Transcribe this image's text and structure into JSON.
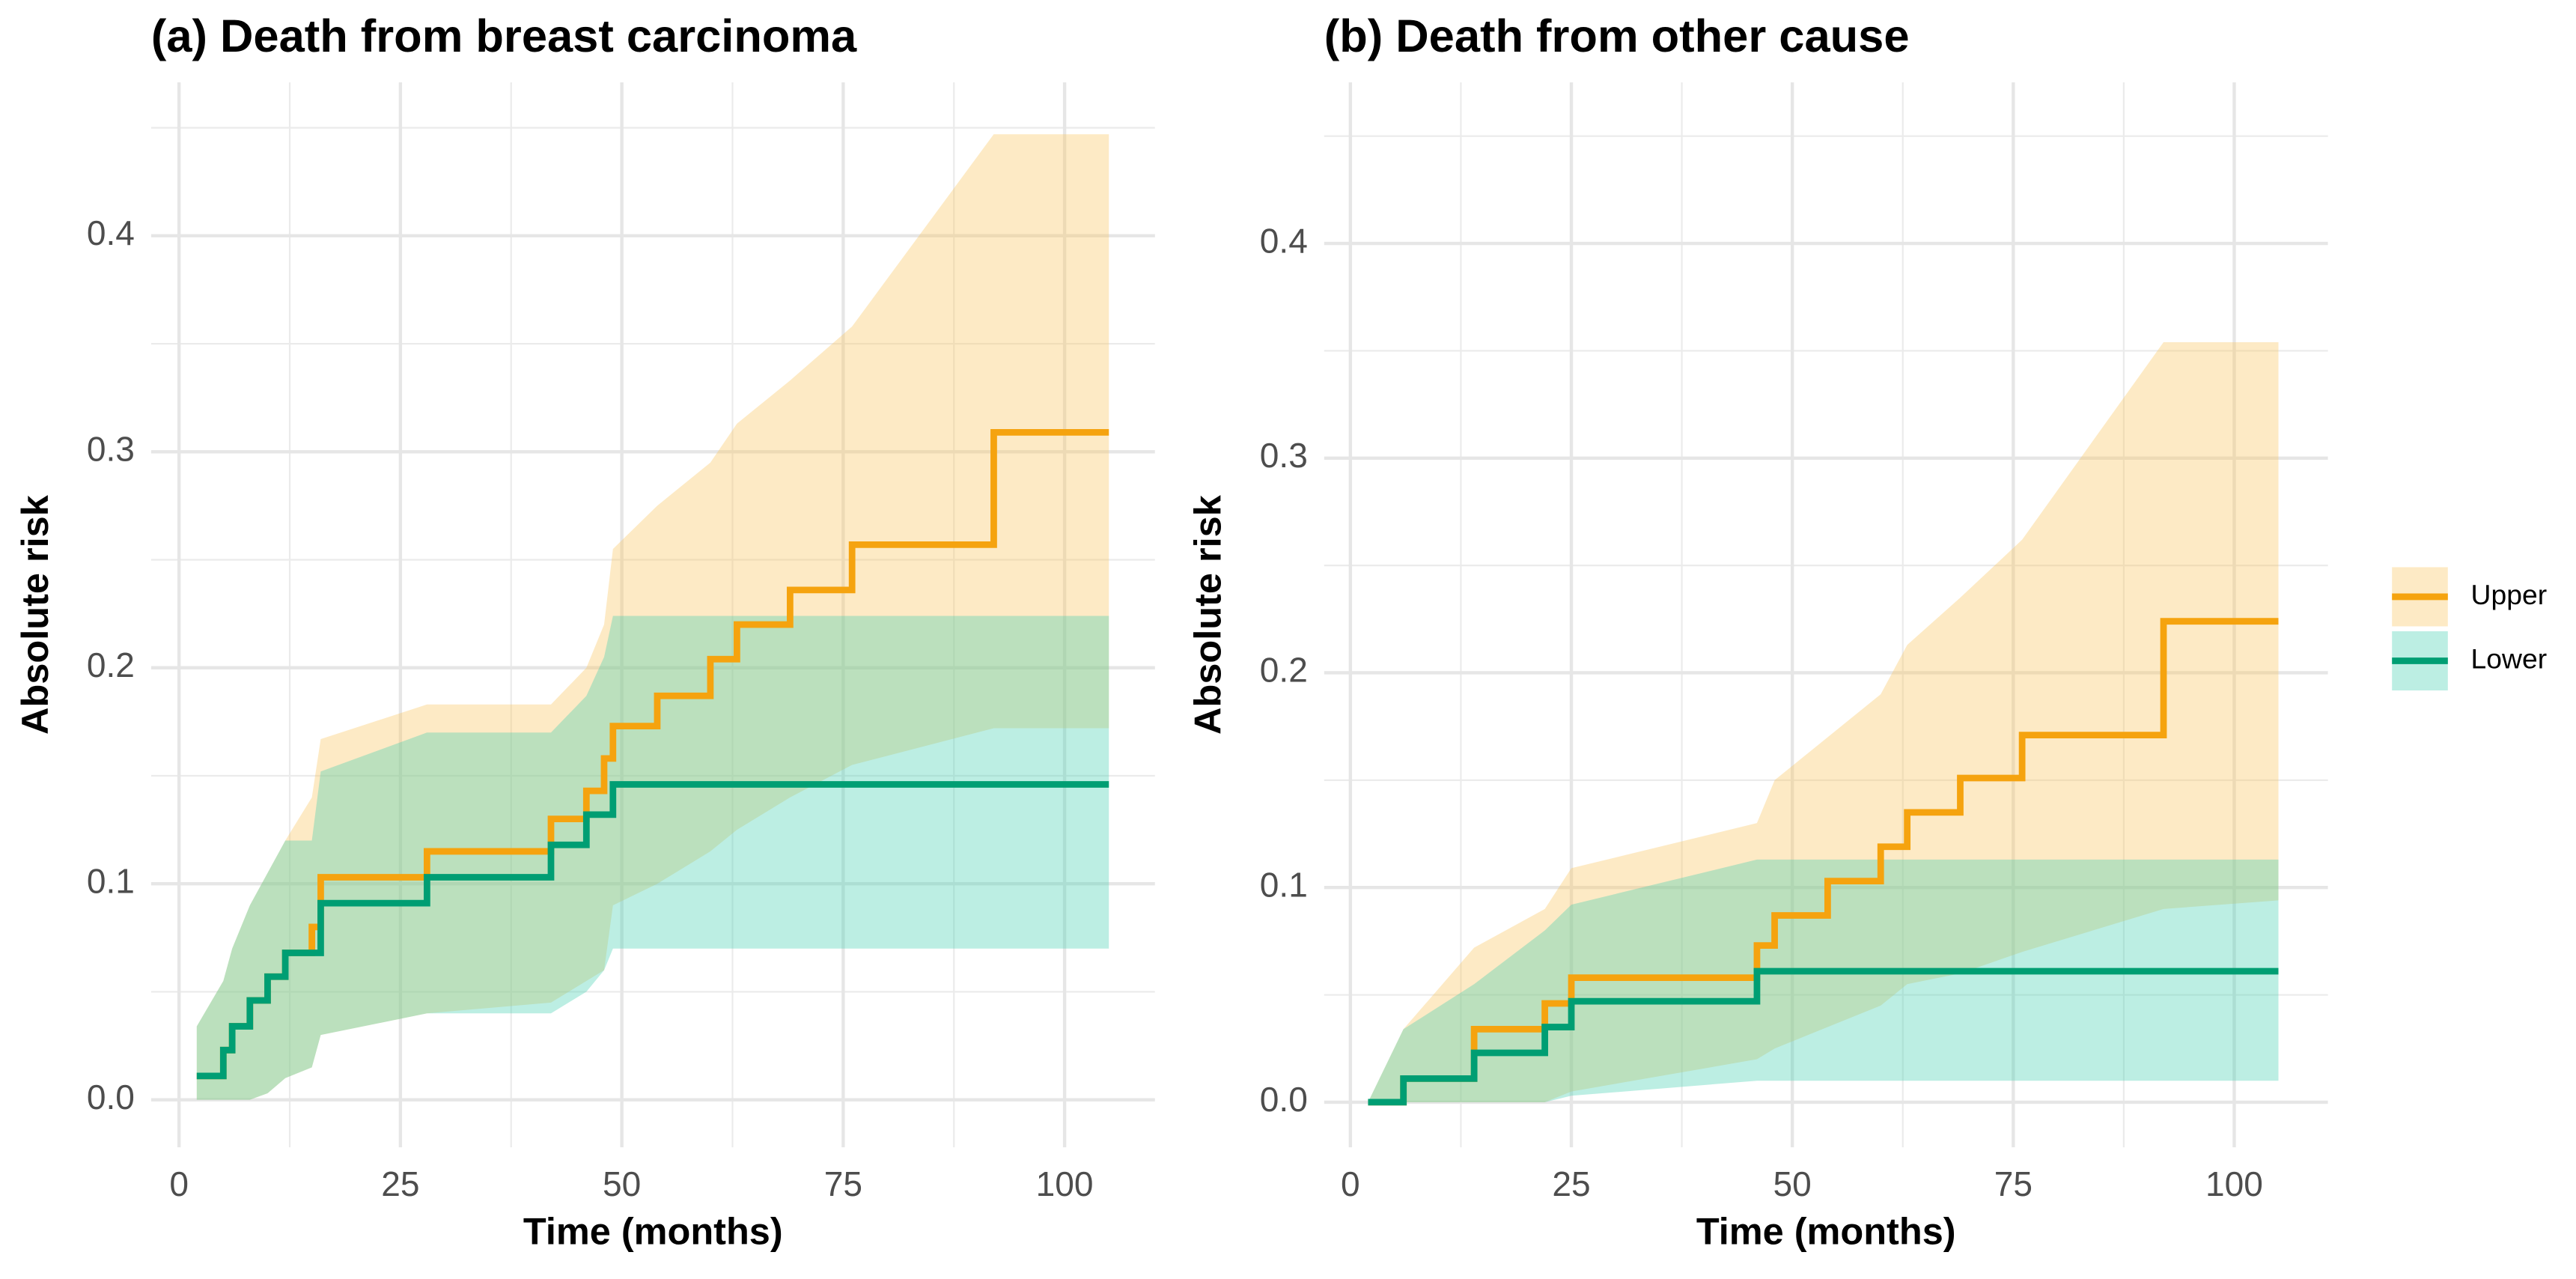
{
  "chart_data": [
    {
      "type": "line",
      "step": true,
      "title": "(a) Death from breast carcinoma",
      "x_label": "Time (months)",
      "y_label": "Absolute risk",
      "xlim": [
        -3.15,
        110.2
      ],
      "ylim": [
        -0.022,
        0.471
      ],
      "xticks": [
        0,
        25,
        50,
        75,
        100
      ],
      "yticks": [
        {
          "value": 0,
          "label": "0.0"
        },
        0.1,
        0.2,
        0.3,
        0.4
      ],
      "grid": true,
      "x": [
        2,
        5,
        6,
        8,
        10,
        12,
        15,
        16,
        28,
        42,
        46,
        48,
        49,
        54,
        60,
        63,
        69,
        76,
        92,
        105
      ],
      "series": [
        {
          "name": "Upper",
          "color": "#f5a30f",
          "band_color": "#f9c25a",
          "values": [
            0.011,
            0.023,
            0.034,
            0.046,
            0.057,
            0.068,
            0.08,
            0.103,
            0.115,
            0.13,
            0.143,
            0.158,
            0.173,
            0.187,
            0.204,
            0.22,
            0.236,
            0.257,
            0.309,
            0.309
          ],
          "lower": [
            0,
            0,
            0,
            0,
            0.003,
            0.01,
            0.015,
            0.03,
            0.04,
            0.045,
            0.055,
            0.06,
            0.09,
            0.1,
            0.115,
            0.125,
            0.14,
            0.155,
            0.172,
            0.172
          ],
          "upper": [
            0.034,
            0.055,
            0.07,
            0.09,
            0.105,
            0.12,
            0.14,
            0.167,
            0.183,
            0.183,
            0.2,
            0.22,
            0.255,
            0.275,
            0.295,
            0.313,
            0.333,
            0.358,
            0.447,
            0.447
          ]
        },
        {
          "name": "Lower",
          "color": "#009e73",
          "band_color": "#3fcfae",
          "values": [
            0.011,
            0.023,
            0.034,
            0.046,
            0.057,
            0.068,
            0.068,
            0.091,
            0.103,
            0.118,
            0.132,
            0.132,
            0.146,
            0.146,
            0.146,
            0.146,
            0.146,
            0.146,
            0.146,
            0.146
          ],
          "lower": [
            0,
            0,
            0,
            0,
            0.003,
            0.01,
            0.015,
            0.03,
            0.04,
            0.04,
            0.05,
            0.06,
            0.07,
            0.07,
            0.07,
            0.07,
            0.07,
            0.07,
            0.07,
            0.07
          ],
          "upper": [
            0.034,
            0.055,
            0.07,
            0.09,
            0.105,
            0.12,
            0.12,
            0.152,
            0.17,
            0.17,
            0.187,
            0.205,
            0.224,
            0.224,
            0.224,
            0.224,
            0.224,
            0.224,
            0.224,
            0.224
          ]
        }
      ]
    },
    {
      "type": "line",
      "step": true,
      "title": "(b) Death from other cause",
      "x_label": "Time (months)",
      "y_label": "Absolute risk",
      "xlim": [
        -2.97,
        110.6
      ],
      "ylim": [
        -0.021,
        0.475
      ],
      "xticks": [
        0,
        25,
        50,
        75,
        100
      ],
      "yticks": [
        {
          "value": 0,
          "label": "0.0"
        },
        0.1,
        0.2,
        0.3,
        0.4
      ],
      "grid": true,
      "legend": "right",
      "x": [
        2,
        6,
        14,
        22,
        25,
        46,
        48,
        54,
        60,
        63,
        69,
        76,
        92,
        105
      ],
      "series": [
        {
          "name": "Upper",
          "color": "#f5a30f",
          "band_color": "#f9c25a",
          "values": [
            0,
            0.011,
            0.034,
            0.046,
            0.058,
            0.073,
            0.087,
            0.103,
            0.119,
            0.135,
            0.151,
            0.171,
            0.224,
            0.224
          ],
          "lower": [
            0,
            0,
            0,
            0,
            0.005,
            0.02,
            0.025,
            0.035,
            0.045,
            0.055,
            0.06,
            0.07,
            0.09,
            0.094
          ],
          "upper": [
            0,
            0.034,
            0.072,
            0.09,
            0.109,
            0.13,
            0.15,
            0.17,
            0.19,
            0.213,
            0.235,
            0.262,
            0.354,
            0.354
          ]
        },
        {
          "name": "Lower",
          "color": "#009e73",
          "band_color": "#3fcfae",
          "values": [
            0,
            0.011,
            0.023,
            0.035,
            0.047,
            0.061,
            0.061,
            0.061,
            0.061,
            0.061,
            0.061,
            0.061,
            0.061,
            0.061
          ],
          "lower": [
            0,
            0,
            0,
            0,
            0.003,
            0.01,
            0.01,
            0.01,
            0.01,
            0.01,
            0.01,
            0.01,
            0.01,
            0.01
          ],
          "upper": [
            0,
            0.034,
            0.055,
            0.08,
            0.092,
            0.113,
            0.113,
            0.113,
            0.113,
            0.113,
            0.113,
            0.113,
            0.113,
            0.113
          ]
        }
      ]
    }
  ]
}
